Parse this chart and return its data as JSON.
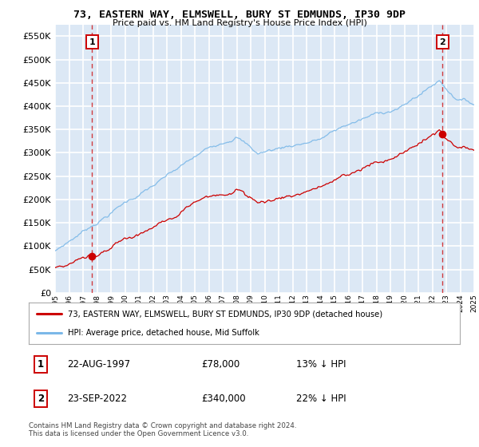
{
  "title": "73, EASTERN WAY, ELMSWELL, BURY ST EDMUNDS, IP30 9DP",
  "subtitle": "Price paid vs. HM Land Registry's House Price Index (HPI)",
  "ylim": [
    0,
    575000
  ],
  "yticks": [
    0,
    50000,
    100000,
    150000,
    200000,
    250000,
    300000,
    350000,
    400000,
    450000,
    500000,
    550000
  ],
  "plot_bg": "#dce8f5",
  "grid_color": "#ffffff",
  "hpi_color": "#7bb8e8",
  "price_color": "#cc0000",
  "sale1_date": 1997.64,
  "sale1_price": 78000,
  "sale1_label": "1",
  "sale1_year_str": "22-AUG-1997",
  "sale1_amount_str": "£78,000",
  "sale1_pct_str": "13% ↓ HPI",
  "sale2_date": 2022.73,
  "sale2_price": 340000,
  "sale2_label": "2",
  "sale2_year_str": "23-SEP-2022",
  "sale2_amount_str": "£340,000",
  "sale2_pct_str": "22% ↓ HPI",
  "legend_line1": "73, EASTERN WAY, ELMSWELL, BURY ST EDMUNDS, IP30 9DP (detached house)",
  "legend_line2": "HPI: Average price, detached house, Mid Suffolk",
  "footnote": "Contains HM Land Registry data © Crown copyright and database right 2024.\nThis data is licensed under the Open Government Licence v3.0.",
  "xmin": 1995,
  "xmax": 2025
}
